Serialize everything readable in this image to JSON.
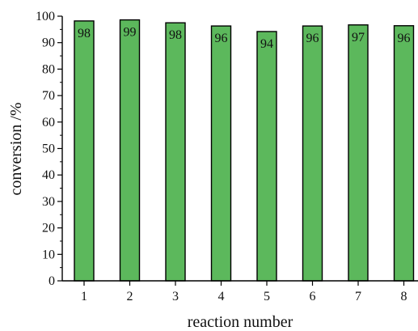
{
  "chart_data": {
    "type": "bar",
    "title": "",
    "xlabel": "reaction number",
    "ylabel": "conversion /%",
    "categories": [
      "1",
      "2",
      "3",
      "4",
      "5",
      "6",
      "7",
      "8"
    ],
    "values": [
      98.2,
      98.6,
      97.5,
      96.3,
      94.2,
      96.3,
      96.7,
      96.4
    ],
    "labels": [
      "98",
      "99",
      "98",
      "96",
      "94",
      "96",
      "97",
      "96"
    ],
    "ylim": [
      0,
      100
    ],
    "yticks": [
      0,
      10,
      20,
      30,
      40,
      50,
      60,
      70,
      80,
      90,
      100
    ],
    "bar_color": "#5cb85c",
    "grid": false,
    "legend": "none"
  }
}
